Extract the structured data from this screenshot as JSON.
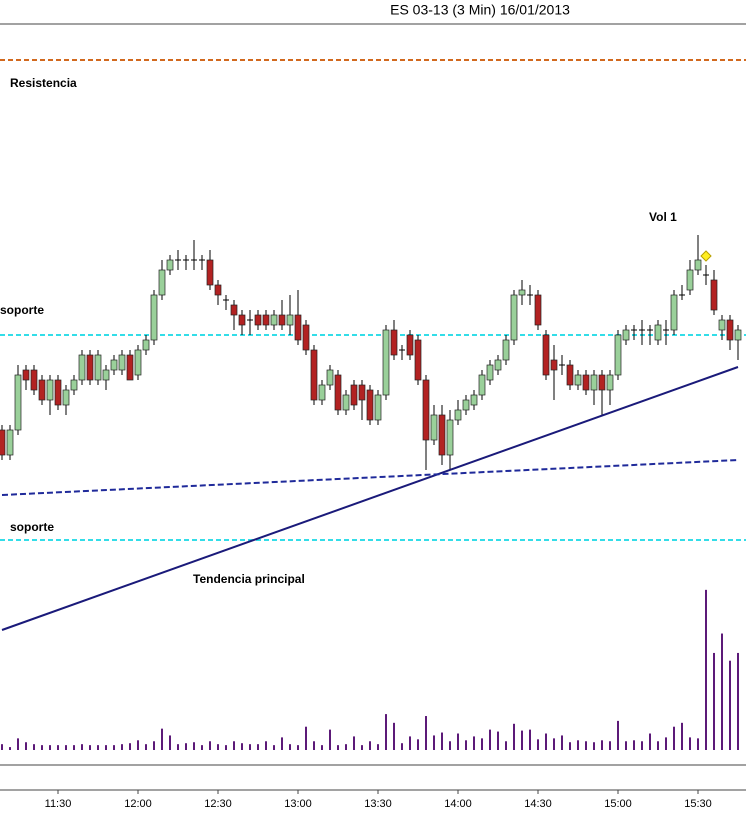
{
  "chart_data": {
    "type": "candlestick",
    "title": "ES 03-13 (3 Min)  16/01/2013",
    "categories": [
      null,
      null,
      null,
      null,
      null,
      null,
      null,
      "11:30",
      null,
      null,
      null,
      null,
      null,
      null,
      null,
      null,
      null,
      "12:00",
      null,
      null,
      null,
      null,
      null,
      null,
      null,
      null,
      null,
      "12:30",
      null,
      null,
      null,
      null,
      null,
      null,
      null,
      null,
      null,
      "13:00",
      null,
      null,
      null,
      null,
      null,
      null,
      null,
      null,
      null,
      "13:30",
      null,
      null,
      null,
      null,
      null,
      null,
      null,
      null,
      null,
      "14:00",
      null,
      null,
      null,
      null,
      null,
      null,
      null,
      null,
      null,
      "14:30",
      null,
      null,
      null,
      null,
      null,
      null,
      null,
      null,
      null,
      "15:00",
      null,
      null,
      null,
      null,
      null,
      null,
      null,
      null,
      null,
      "15:30",
      null,
      null,
      null,
      null,
      null
    ],
    "open": [
      1459.75,
      1458.5,
      1459.75,
      1462.75,
      1462.75,
      1462.25,
      1461.25,
      1462.25,
      1461,
      1461.75,
      1462.25,
      1463.5,
      1462.25,
      1462.25,
      1462.75,
      1462.75,
      1463.5,
      1462.5,
      1463.75,
      1464.25,
      1466.5,
      1467.75,
      1468.25,
      1468.25,
      1468.25,
      1468.25,
      1468.25,
      1467,
      1466.25,
      1466,
      1465.5,
      1465.25,
      1465.5,
      1465.5,
      1465,
      1465.5,
      1465,
      1465.5,
      1465,
      1463.75,
      1461.25,
      1462,
      1462.5,
      1460.75,
      1462,
      1462,
      1461.75,
      1460.25,
      1461.5,
      1464.75,
      1463.75,
      1464.5,
      1464.25,
      1462.25,
      1459.25,
      1460.5,
      1458.5,
      1460.25,
      1460.75,
      1461,
      1461.5,
      1462.25,
      1462.75,
      1463.25,
      1464.25,
      1466.5,
      1466.5,
      1466.5,
      1464.5,
      1463.25,
      1463,
      1463,
      1462,
      1462.5,
      1461.75,
      1462.5,
      1461.75,
      1462.5,
      1464.25,
      1464.75,
      1464.75,
      1464.75,
      1464.25,
      1464.75,
      1464.75,
      1466.5,
      1466.75,
      1467.75,
      1467.5,
      1467.25,
      1464.75,
      1465.25,
      1464.25
    ],
    "high": [
      1460,
      1460,
      1463,
      1463,
      1463,
      1462.5,
      1462.5,
      1462.5,
      1462,
      1462.5,
      1463.75,
      1463.75,
      1463.75,
      1463,
      1463.5,
      1463.75,
      1463.75,
      1464,
      1464.5,
      1466.75,
      1468.25,
      1468.5,
      1468.75,
      1468.5,
      1469.25,
      1468.5,
      1468.75,
      1467.25,
      1466.5,
      1466.25,
      1465.75,
      1465.75,
      1465.75,
      1465.75,
      1465.75,
      1466.25,
      1466.5,
      1466.75,
      1465.25,
      1464,
      1462.25,
      1463,
      1462.75,
      1461.75,
      1462.25,
      1462.25,
      1462,
      1461.75,
      1465,
      1465.25,
      1464,
      1464.75,
      1464.5,
      1462.5,
      1461,
      1461,
      1460.75,
      1461.25,
      1461.5,
      1461.75,
      1462.75,
      1463.25,
      1463.5,
      1464.5,
      1466.75,
      1467.25,
      1467,
      1466.75,
      1464.75,
      1464,
      1463.5,
      1463.25,
      1462.75,
      1462.75,
      1462.75,
      1462.75,
      1462.75,
      1464.75,
      1465,
      1465,
      1465.25,
      1465,
      1465.25,
      1465.25,
      1466.75,
      1467,
      1468.25,
      1469.5,
      1468,
      1467.75,
      1465.5,
      1465.5,
      1465
    ],
    "low": [
      1458.25,
      1458.25,
      1459.5,
      1461.75,
      1461.5,
      1461,
      1460.5,
      1460.75,
      1460.5,
      1461.5,
      1462,
      1462,
      1462,
      1461.75,
      1462.5,
      1462.5,
      1462.25,
      1462.25,
      1463.5,
      1464,
      1466.25,
      1467.5,
      1467.75,
      1467.75,
      1467.75,
      1467.75,
      1466.75,
      1466,
      1465.75,
      1464.75,
      1464.5,
      1464.5,
      1464.75,
      1464.75,
      1464.75,
      1464.75,
      1464.5,
      1464,
      1463.5,
      1461,
      1461,
      1461.75,
      1460.5,
      1460.5,
      1460.75,
      1460.25,
      1460,
      1460,
      1461.25,
      1463.25,
      1463.25,
      1463.25,
      1462,
      1457.75,
      1459,
      1458,
      1457.75,
      1460,
      1460.5,
      1460.75,
      1461.25,
      1462,
      1462.5,
      1463,
      1464,
      1466,
      1466,
      1464.75,
      1462.25,
      1461.25,
      1462.5,
      1461.75,
      1461.75,
      1461.5,
      1461,
      1460.5,
      1461,
      1462.25,
      1464,
      1464.25,
      1464,
      1464,
      1464,
      1464,
      1464.5,
      1466.25,
      1466.5,
      1467.5,
      1467,
      1465.5,
      1464.25,
      1463.75,
      1463.25
    ],
    "close": [
      1458.5,
      1459.75,
      1462.5,
      1462.25,
      1461.75,
      1461.25,
      1462.25,
      1461,
      1461.75,
      1462.25,
      1463.5,
      1462.25,
      1463.5,
      1462.75,
      1463.25,
      1463.5,
      1462.25,
      1463.75,
      1464.25,
      1466.5,
      1467.75,
      1468.25,
      1468.25,
      1468.25,
      1468.25,
      1468.25,
      1467,
      1466.5,
      1466.25,
      1465.5,
      1465,
      1465.25,
      1465,
      1465,
      1465.5,
      1465,
      1465.5,
      1464.25,
      1463.75,
      1461.25,
      1462,
      1462.75,
      1460.75,
      1461.5,
      1461,
      1461.25,
      1460.25,
      1461.5,
      1464.75,
      1463.5,
      1463.75,
      1463.5,
      1462.25,
      1459.25,
      1460.5,
      1458.5,
      1460.25,
      1460.75,
      1461.25,
      1461.5,
      1462.5,
      1463,
      1463.25,
      1464.25,
      1466.5,
      1466.75,
      1466.5,
      1465,
      1462.5,
      1462.75,
      1463,
      1462,
      1462.5,
      1461.75,
      1462.5,
      1461.75,
      1462.5,
      1464.5,
      1464.75,
      1464.75,
      1464.75,
      1464.75,
      1465,
      1464.75,
      1466.5,
      1466.5,
      1467.75,
      1468.25,
      1467.5,
      1465.75,
      1465.25,
      1464.25,
      1464.75
    ],
    "volume": [
      6,
      3,
      12,
      8,
      6,
      5,
      5,
      5,
      5,
      5,
      6,
      5,
      5,
      5,
      5,
      6,
      7,
      10,
      6,
      9,
      22,
      15,
      6,
      7,
      8,
      5,
      9,
      6,
      5,
      9,
      7,
      6,
      6,
      9,
      5,
      13,
      6,
      5,
      24,
      9,
      5,
      21,
      5,
      6,
      14,
      5,
      9,
      6,
      37,
      28,
      7,
      14,
      11,
      35,
      15,
      18,
      9,
      17,
      10,
      14,
      12,
      21,
      19,
      9,
      27,
      20,
      21,
      11,
      17,
      12,
      15,
      8,
      10,
      9,
      8,
      10,
      9,
      30,
      9,
      10,
      9,
      17,
      9,
      13,
      24,
      28,
      13,
      12,
      165,
      100,
      120,
      92,
      100
    ],
    "ylim": [
      1449.25,
      1480
    ],
    "vlim": [
      0,
      170
    ],
    "up_color": "#9ad09a",
    "down_color": "#b22222",
    "volume_color": "#5c1a78",
    "levels": [
      {
        "label": "Resistencia",
        "value": 1478.25,
        "color": "#d2691e"
      },
      {
        "label": "soporte",
        "value": 1464.5,
        "color": "#33dde8"
      },
      {
        "label": "soporte",
        "value": 1454.25,
        "color": "#33dde8"
      }
    ],
    "trendlines": [
      {
        "label": "Tendencia principal",
        "values": [
          1449.75,
          1462.9
        ],
        "color": "#1a1a7a",
        "dashed": false
      },
      {
        "values": [
          1456.5,
          1458.25
        ],
        "color": "#1f2a9a",
        "dashed": true
      }
    ],
    "marker": {
      "label": "Vol 1",
      "value": 1468.45,
      "color": "#ffee22"
    }
  }
}
